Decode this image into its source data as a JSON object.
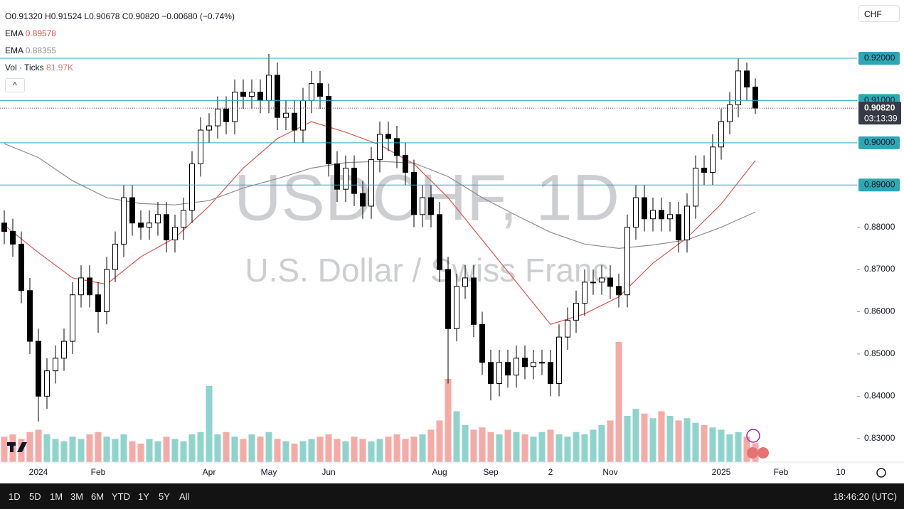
{
  "header": {
    "ohlc": "O0.91320 H0.91524 L0.90678 C0.90820",
    "change": "−0.00680 (−0.74%)",
    "currency": "CHF"
  },
  "indicators": [
    {
      "name": "EMA",
      "value": "0.89578"
    },
    {
      "name": "EMA",
      "value": "0.88355"
    },
    {
      "name": "Vol · Ticks",
      "value": "81.97K"
    }
  ],
  "watermark": {
    "symbol": "USDCHF, 1D",
    "description": "U.S. Dollar / Swiss Franc"
  },
  "toolbar": {
    "ranges": [
      "1D",
      "5D",
      "1M",
      "3M",
      "6M",
      "YTD",
      "1Y",
      "5Y",
      "All"
    ],
    "clock": "18:46:20 (UTC)"
  },
  "chart_data": {
    "type": "candlestick",
    "categories": [
      null,
      null,
      null,
      null,
      "2024",
      null,
      null,
      null,
      null,
      null,
      null,
      "Feb",
      null,
      null,
      null,
      null,
      null,
      null,
      null,
      null,
      null,
      null,
      null,
      null,
      "Apr",
      null,
      null,
      null,
      null,
      null,
      null,
      "May",
      null,
      null,
      null,
      null,
      null,
      null,
      "Jun",
      null,
      null,
      null,
      null,
      null,
      null,
      null,
      null,
      null,
      null,
      null,
      null,
      "Aug",
      null,
      null,
      null,
      null,
      null,
      "Sep",
      null,
      null,
      null,
      null,
      null,
      null,
      "2",
      null,
      null,
      null,
      null,
      null,
      null,
      "Nov",
      null,
      null,
      null,
      null,
      null,
      null,
      null,
      null,
      null,
      null,
      null,
      null,
      "2025",
      null,
      null,
      null,
      null,
      null,
      null,
      "Feb",
      null,
      null,
      null,
      null,
      null,
      null,
      "10"
    ],
    "open": [
      0.881,
      0.879,
      0.876,
      0.865,
      0.853,
      0.84,
      0.846,
      0.849,
      0.853,
      0.864,
      0.868,
      0.864,
      0.86,
      0.87,
      0.876,
      0.887,
      0.881,
      0.88,
      0.881,
      0.883,
      0.877,
      0.88,
      0.884,
      0.895,
      0.903,
      0.904,
      0.908,
      0.905,
      0.912,
      0.911,
      0.912,
      0.91,
      0.916,
      0.906,
      0.907,
      0.903,
      0.91,
      0.914,
      0.911,
      0.895,
      0.889,
      0.894,
      0.888,
      0.885,
      0.896,
      0.902,
      0.901,
      0.897,
      0.893,
      0.883,
      0.887,
      0.883,
      0.87,
      0.856,
      0.866,
      0.868,
      0.857,
      0.848,
      0.843,
      0.848,
      0.845,
      0.849,
      0.847,
      0.848,
      0.848,
      0.843,
      0.854,
      0.858,
      0.862,
      0.867,
      0.867,
      0.868,
      0.866,
      0.864,
      0.88,
      0.887,
      0.882,
      0.884,
      0.882,
      0.883,
      0.877,
      0.885,
      0.894,
      0.893,
      0.899,
      0.905,
      0.909,
      0.917,
      0.9132,
      null,
      null,
      null,
      null,
      null,
      null,
      null,
      null,
      null,
      null
    ],
    "high": [
      0.884,
      0.882,
      0.879,
      0.868,
      0.856,
      0.849,
      0.852,
      0.856,
      0.867,
      0.871,
      0.871,
      0.867,
      0.873,
      0.879,
      0.89,
      0.89,
      0.884,
      0.884,
      0.886,
      0.886,
      0.883,
      0.887,
      0.898,
      0.906,
      0.907,
      0.911,
      0.911,
      0.915,
      0.915,
      0.915,
      0.915,
      0.921,
      0.919,
      0.91,
      0.91,
      0.913,
      0.917,
      0.917,
      0.914,
      0.898,
      0.897,
      0.897,
      0.891,
      0.899,
      0.905,
      0.905,
      0.904,
      0.9,
      0.896,
      0.89,
      0.89,
      0.886,
      0.873,
      0.869,
      0.871,
      0.871,
      0.86,
      0.851,
      0.851,
      0.851,
      0.852,
      0.852,
      0.851,
      0.851,
      0.851,
      0.857,
      0.861,
      0.865,
      0.87,
      0.87,
      0.871,
      0.871,
      0.869,
      0.883,
      0.89,
      0.89,
      0.887,
      0.887,
      0.886,
      0.886,
      0.888,
      0.897,
      0.897,
      0.902,
      0.908,
      0.912,
      0.92,
      0.919,
      0.91524,
      null,
      null,
      null,
      null,
      null,
      null,
      null,
      null,
      null,
      null
    ],
    "low": [
      0.876,
      0.873,
      0.862,
      0.85,
      0.834,
      0.837,
      0.843,
      0.846,
      0.85,
      0.861,
      0.861,
      0.855,
      0.857,
      0.867,
      0.873,
      0.878,
      0.877,
      0.877,
      0.878,
      0.874,
      0.874,
      0.877,
      0.881,
      0.892,
      0.9,
      0.901,
      0.902,
      0.902,
      0.908,
      0.908,
      0.907,
      0.907,
      0.903,
      0.903,
      0.9,
      0.9,
      0.907,
      0.908,
      0.892,
      0.886,
      0.886,
      0.885,
      0.882,
      0.882,
      0.893,
      0.898,
      0.894,
      0.89,
      0.88,
      0.88,
      0.88,
      0.867,
      0.843,
      0.853,
      0.863,
      0.854,
      0.845,
      0.839,
      0.84,
      0.842,
      0.842,
      0.844,
      0.844,
      0.845,
      0.84,
      0.84,
      0.851,
      0.855,
      0.859,
      0.864,
      0.864,
      0.863,
      0.861,
      0.861,
      0.877,
      0.879,
      0.879,
      0.879,
      0.879,
      0.874,
      0.874,
      0.882,
      0.89,
      0.89,
      0.896,
      0.902,
      0.906,
      0.91,
      0.90678,
      null,
      null,
      null,
      null,
      null,
      null,
      null,
      null,
      null,
      null
    ],
    "close": [
      0.879,
      0.876,
      0.865,
      0.853,
      0.84,
      0.846,
      0.849,
      0.853,
      0.864,
      0.868,
      0.864,
      0.86,
      0.87,
      0.876,
      0.887,
      0.881,
      0.88,
      0.881,
      0.883,
      0.877,
      0.88,
      0.884,
      0.895,
      0.903,
      0.904,
      0.908,
      0.905,
      0.912,
      0.911,
      0.912,
      0.91,
      0.916,
      0.906,
      0.907,
      0.903,
      0.91,
      0.914,
      0.911,
      0.895,
      0.889,
      0.894,
      0.888,
      0.885,
      0.896,
      0.902,
      0.901,
      0.897,
      0.893,
      0.883,
      0.887,
      0.883,
      0.87,
      0.856,
      0.866,
      0.868,
      0.857,
      0.848,
      0.843,
      0.848,
      0.845,
      0.849,
      0.847,
      0.848,
      0.848,
      0.843,
      0.854,
      0.858,
      0.862,
      0.867,
      0.867,
      0.868,
      0.866,
      0.864,
      0.88,
      0.887,
      0.882,
      0.884,
      0.882,
      0.883,
      0.877,
      0.885,
      0.894,
      0.893,
      0.899,
      0.905,
      0.909,
      0.917,
      0.9132,
      0.9082,
      null,
      null,
      null,
      null,
      null,
      null,
      null,
      null,
      null,
      null
    ],
    "volume": [
      110,
      120,
      100,
      130,
      140,
      120,
      100,
      90,
      110,
      100,
      120,
      130,
      110,
      100,
      120,
      90,
      80,
      100,
      90,
      110,
      100,
      90,
      120,
      130,
      330,
      120,
      130,
      110,
      100,
      120,
      110,
      130,
      100,
      90,
      80,
      90,
      100,
      110,
      120,
      100,
      90,
      110,
      100,
      90,
      100,
      110,
      120,
      100,
      110,
      120,
      140,
      180,
      360,
      220,
      160,
      140,
      150,
      130,
      120,
      140,
      130,
      120,
      110,
      130,
      140,
      120,
      110,
      130,
      120,
      140,
      160,
      180,
      520,
      200,
      230,
      210,
      190,
      220,
      200,
      180,
      190,
      170,
      160,
      150,
      140,
      120,
      130,
      110,
      81.97,
      null,
      null,
      null,
      null,
      null,
      null,
      null,
      null,
      null,
      null
    ],
    "up_color": "#ffffff",
    "down_color": "#000000",
    "up_volume_color": "#8fd3cd",
    "down_volume_color": "#f5aaa6",
    "series": [
      {
        "color": "#e0534f",
        "x": [
          0,
          4,
          8,
          12,
          16,
          20,
          24,
          28,
          32,
          36,
          40,
          44,
          48,
          52,
          56,
          60,
          64,
          68,
          72,
          76,
          80,
          84,
          88
        ],
        "values": [
          0.8805,
          0.874,
          0.868,
          0.8665,
          0.873,
          0.8775,
          0.885,
          0.894,
          0.901,
          0.905,
          0.9025,
          0.8995,
          0.895,
          0.887,
          0.877,
          0.867,
          0.857,
          0.8595,
          0.8635,
          0.8715,
          0.8775,
          0.8855,
          0.8958
        ]
      },
      {
        "color": "#8c8c8c",
        "x": [
          0,
          4,
          8,
          12,
          16,
          20,
          24,
          28,
          32,
          36,
          40,
          44,
          48,
          52,
          56,
          60,
          64,
          68,
          72,
          76,
          80,
          84,
          88
        ],
        "values": [
          0.8998,
          0.8965,
          0.891,
          0.887,
          0.8856,
          0.8853,
          0.8863,
          0.8893,
          0.8915,
          0.894,
          0.8953,
          0.8956,
          0.8952,
          0.892,
          0.887,
          0.8828,
          0.8788,
          0.876,
          0.875,
          0.8758,
          0.877,
          0.88,
          0.8836
        ]
      }
    ],
    "ylim": [
      0.8244,
      0.9338
    ],
    "yticks": [
      {
        "value": 0.88,
        "label": "0.88000"
      },
      {
        "value": 0.87,
        "label": "0.87000"
      },
      {
        "value": 0.86,
        "label": "0.86000"
      },
      {
        "value": 0.85,
        "label": "0.85000"
      },
      {
        "value": 0.84,
        "label": "0.84000"
      },
      {
        "value": 0.83,
        "label": "0.83000"
      }
    ],
    "hlines": [
      {
        "value": 0.92,
        "label": "0.92000"
      },
      {
        "value": 0.91,
        "label": "0.91000"
      },
      {
        "value": 0.9,
        "label": "0.90000"
      },
      {
        "value": 0.89,
        "label": "0.89000"
      }
    ],
    "hline_color": "#2ba7b6",
    "last_price": {
      "value": 0.9082,
      "label": "0.90820",
      "countdown": "03:13:39"
    },
    "vlim": [
      0,
      2000
    ]
  }
}
